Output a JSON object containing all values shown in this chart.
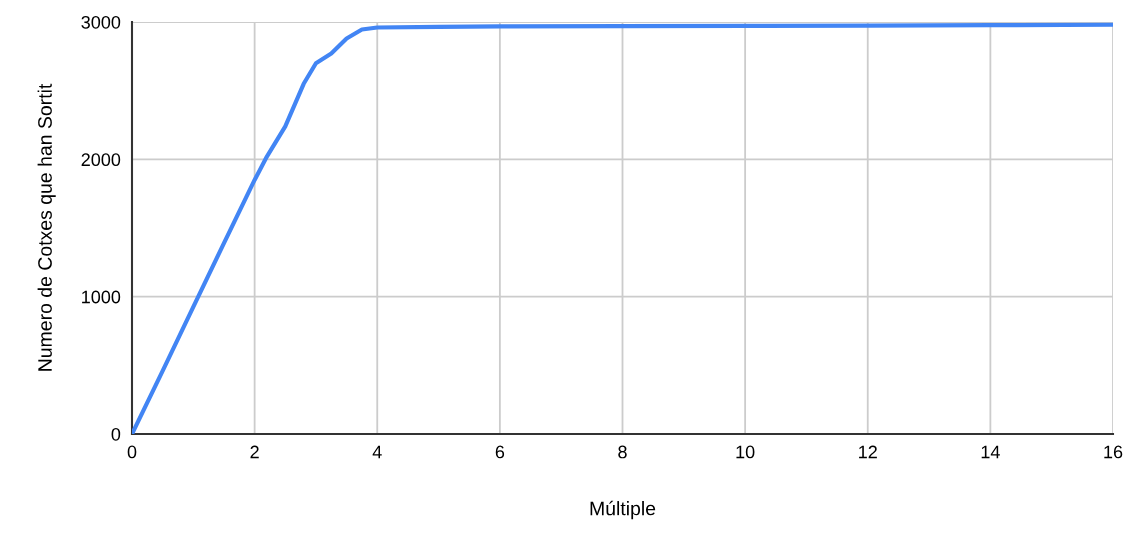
{
  "chart_data": {
    "type": "line",
    "xlabel": "Múltiple",
    "ylabel": "Numero de Cotxes que han Sortit",
    "x": [
      0,
      0.5,
      1,
      1.5,
      2,
      2.2,
      2.5,
      2.8,
      3,
      3.25,
      3.5,
      3.75,
      4,
      5,
      6,
      8,
      10,
      12,
      14,
      16
    ],
    "series": [
      {
        "color": "#4285f4",
        "values": [
          0,
          460,
          925,
          1390,
          1850,
          2020,
          2240,
          2550,
          2700,
          2770,
          2880,
          2945,
          2960,
          2965,
          2968,
          2970,
          2972,
          2974,
          2977,
          2980
        ]
      }
    ],
    "xlim": [
      0,
      16
    ],
    "xticks": [
      0,
      2,
      4,
      6,
      8,
      10,
      12,
      14,
      16
    ],
    "ylim": [
      0,
      3000
    ],
    "yticks": [
      0,
      1000,
      2000,
      3000
    ],
    "grid": true,
    "legend": false,
    "marker": "none",
    "line_style": "solid"
  }
}
